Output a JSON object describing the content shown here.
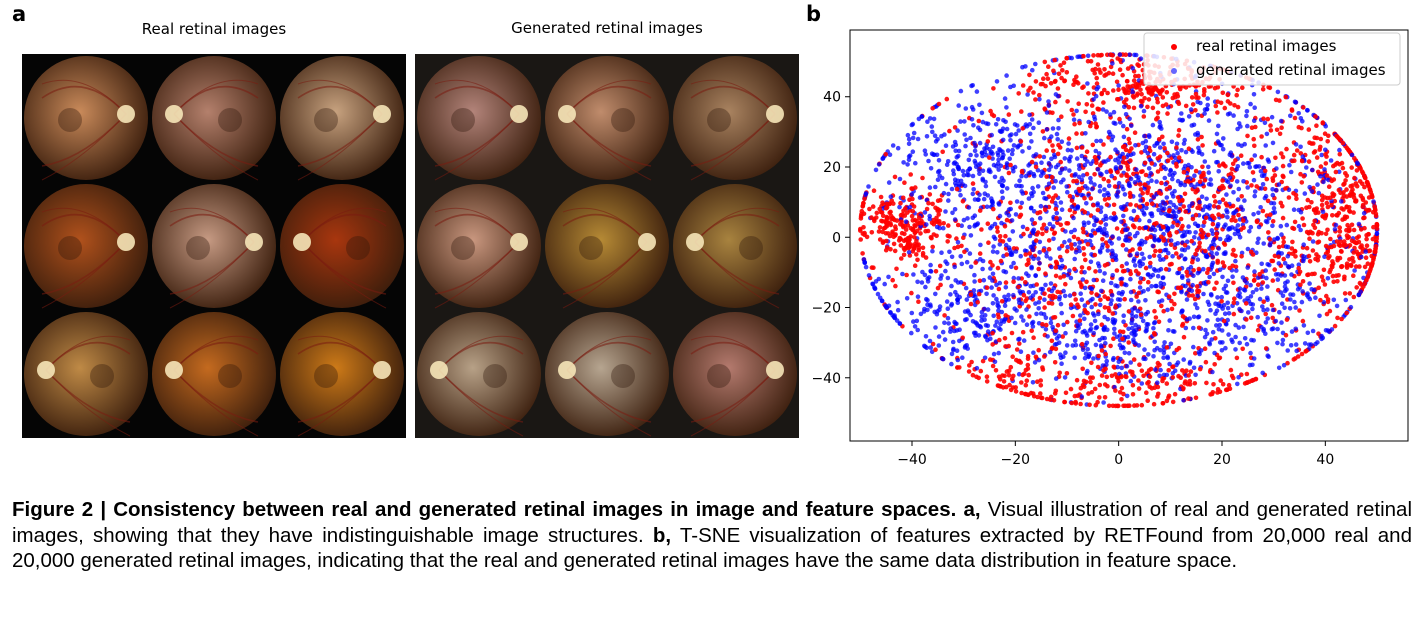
{
  "panel_a": {
    "letter": "a",
    "real_title": "Real retinal images",
    "generated_title": "Generated retinal images",
    "real_images": [
      {
        "color": "#c98a5a"
      },
      {
        "color": "#b4806c"
      },
      {
        "color": "#c7a27f"
      },
      {
        "color": "#b0511c"
      },
      {
        "color": "#c69a83"
      },
      {
        "color": "#a8360e"
      },
      {
        "color": "#bf8a46"
      },
      {
        "color": "#c46a1f"
      },
      {
        "color": "#cd7a18"
      }
    ],
    "generated_images": [
      {
        "color": "#b3847a"
      },
      {
        "color": "#c08c6c"
      },
      {
        "color": "#a98360"
      },
      {
        "color": "#c9977f"
      },
      {
        "color": "#b68a35"
      },
      {
        "color": "#a8833f"
      },
      {
        "color": "#b7a187"
      },
      {
        "color": "#b6a590"
      },
      {
        "color": "#b47a6e"
      }
    ]
  },
  "panel_b": {
    "letter": "b",
    "chart_data": {
      "type": "scatter",
      "title": "",
      "xlabel": "",
      "ylabel": "",
      "xlim": [
        -52,
        56
      ],
      "ylim": [
        -58,
        59
      ],
      "xticks": [
        -40,
        -20,
        0,
        20,
        40
      ],
      "yticks": [
        -40,
        -20,
        0,
        20,
        40
      ],
      "x_tick_labels": [
        "−40",
        "−20",
        "0",
        "20",
        "40"
      ],
      "y_tick_labels": [
        "−40",
        "−20",
        "0",
        "20",
        "40"
      ],
      "grid": false,
      "legend_position": "top-right",
      "series": [
        {
          "name": "real retinal images",
          "color": "#ff0000",
          "n_points": 20000,
          "clusters": [
            {
              "cx": -42,
              "cy": 3,
              "sx": 5,
              "sy": 6,
              "w": 0.1
            },
            {
              "cx": 5,
              "cy": 44,
              "sx": 10,
              "sy": 5,
              "w": 0.12
            },
            {
              "cx": 43,
              "cy": 10,
              "sx": 5,
              "sy": 10,
              "w": 0.1
            },
            {
              "cx": 44,
              "cy": -5,
              "sx": 5,
              "sy": 5,
              "w": 0.05
            },
            {
              "cx": 2,
              "cy": -42,
              "sx": 12,
              "sy": 5,
              "w": 0.08
            },
            {
              "cx": -22,
              "cy": -38,
              "sx": 6,
              "sy": 4,
              "w": 0.03
            },
            {
              "cx": 6,
              "cy": 2,
              "sx": 22,
              "sy": 22,
              "w": 0.52
            }
          ]
        },
        {
          "name": "generated retinal images",
          "color": "#0000ff",
          "n_points": 20000,
          "clusters": [
            {
              "cx": 6,
              "cy": 6,
              "sx": 20,
              "sy": 20,
              "w": 0.62
            },
            {
              "cx": -26,
              "cy": 22,
              "sx": 10,
              "sy": 9,
              "w": 0.12
            },
            {
              "cx": -30,
              "cy": -20,
              "sx": 10,
              "sy": 9,
              "w": 0.12
            },
            {
              "cx": 0,
              "cy": -30,
              "sx": 10,
              "sy": 6,
              "w": 0.08
            },
            {
              "cx": 28,
              "cy": -20,
              "sx": 8,
              "sy": 8,
              "w": 0.06
            }
          ]
        }
      ]
    }
  },
  "caption": {
    "bold": "Figure 2 | Consistency between real and generated retinal images in image and feature spaces.",
    "label_a": "a,",
    "text_a": "Visual illustration of real and generated retinal images, showing that they have indistinguishable image structures.",
    "label_b": "b,",
    "text_b": "T-SNE visualization of features extracted by RETFound from 20,000 real and 20,000 generated retinal images, indicating that the real and generated retinal images have the same data distribution in feature space."
  }
}
